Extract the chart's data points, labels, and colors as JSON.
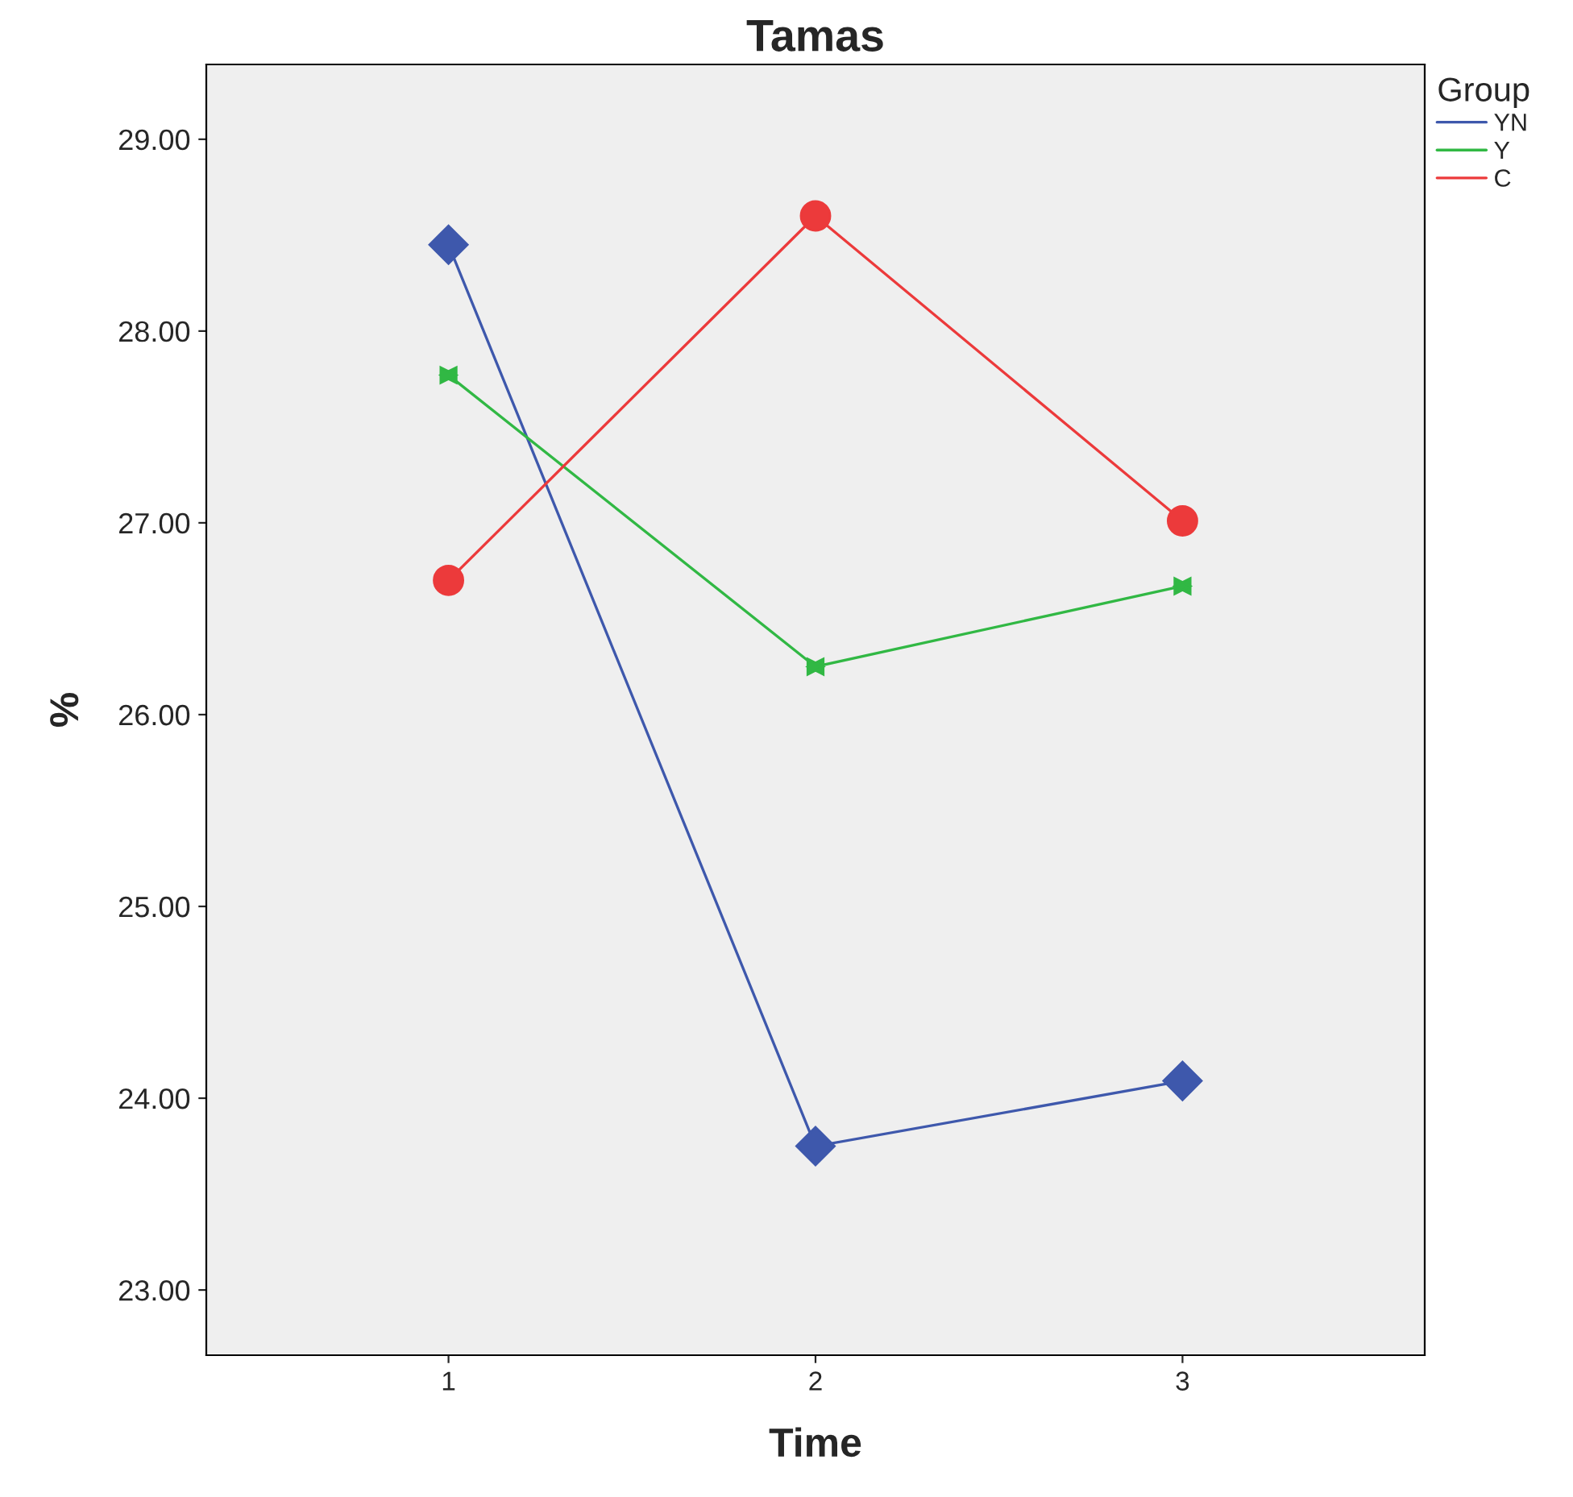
{
  "chart_data": {
    "type": "line",
    "title": "Tamas",
    "xlabel": "Time",
    "ylabel": "%",
    "legend_title": "Group",
    "legend": "top right",
    "categories": [
      "1",
      "2",
      "3"
    ],
    "series": [
      {
        "name": "YN",
        "color": "#3e58ac",
        "values": [
          28.45,
          23.75,
          24.09
        ],
        "marker": "diamond"
      },
      {
        "name": "Y",
        "color": "#31b844",
        "values": [
          27.77,
          26.25,
          26.67
        ],
        "marker": "triangle"
      },
      {
        "name": "C",
        "color": "#ec3a3b",
        "values": [
          26.7,
          28.6,
          27.01
        ],
        "marker": "circle"
      }
    ],
    "ylim": [
      22.66,
      29.39
    ],
    "yticks": [
      {
        "value": 23,
        "label": "23.00"
      },
      {
        "value": 24,
        "label": "24.00"
      },
      {
        "value": 25,
        "label": "25.00"
      },
      {
        "value": 26,
        "label": "26.00"
      },
      {
        "value": 27,
        "label": "27.00"
      },
      {
        "value": 28,
        "label": "28.00"
      },
      {
        "value": 29,
        "label": "29.00"
      }
    ],
    "grid": false,
    "line_style": "solid"
  }
}
